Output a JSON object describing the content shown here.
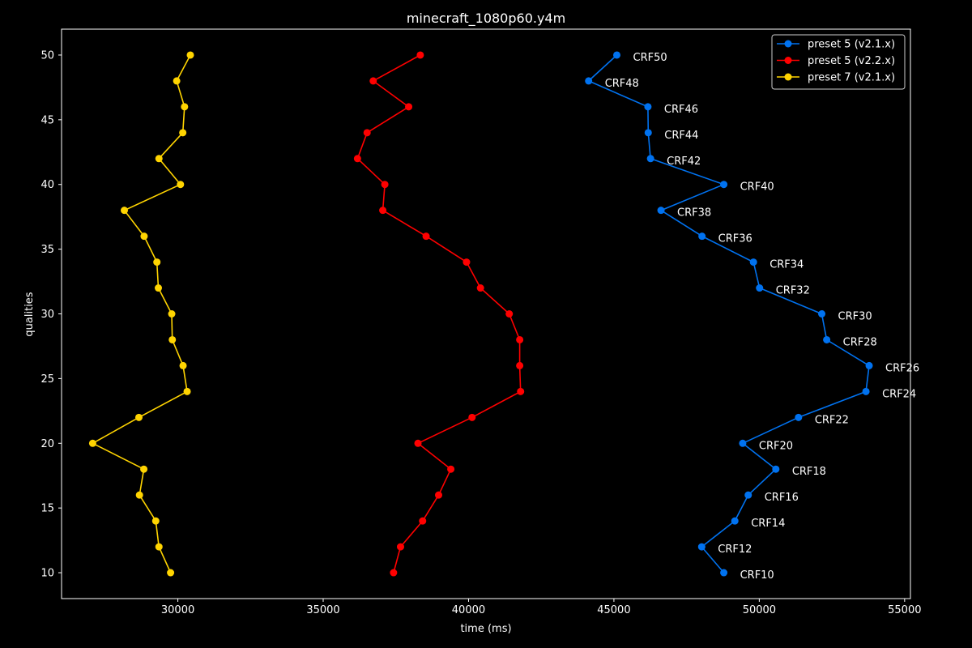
{
  "chart_data": {
    "type": "line",
    "title": "minecraft_1080p60.y4m",
    "xlabel": "time (ms)",
    "ylabel": "qualities",
    "xlim": [
      26000,
      55200
    ],
    "ylim": [
      8,
      52
    ],
    "xticks": [
      30000,
      35000,
      40000,
      45000,
      50000,
      55000
    ],
    "yticks": [
      10,
      15,
      20,
      25,
      30,
      35,
      40,
      45,
      50
    ],
    "grid": false,
    "legend_position": "top-right",
    "y": [
      10,
      12,
      14,
      16,
      18,
      20,
      22,
      24,
      26,
      28,
      30,
      32,
      34,
      36,
      38,
      40,
      42,
      44,
      46,
      48,
      50
    ],
    "point_labels": [
      "CRF10",
      "CRF12",
      "CRF14",
      "CRF16",
      "CRF18",
      "CRF20",
      "CRF22",
      "CRF24",
      "CRF26",
      "CRF28",
      "CRF30",
      "CRF32",
      "CRF34",
      "CRF36",
      "CRF38",
      "CRF40",
      "CRF42",
      "CRF44",
      "CRF46",
      "CRF48",
      "CRF50"
    ],
    "labeled_series": 0,
    "series": [
      {
        "name": "preset 5 (v2.1.x)",
        "color": "#0072f0",
        "x": [
          48780,
          48020,
          49160,
          49620,
          50570,
          49430,
          51350,
          53670,
          53780,
          52320,
          52150,
          50010,
          49800,
          48030,
          46620,
          48780,
          46260,
          46180,
          46170,
          44130,
          45100
        ]
      },
      {
        "name": "preset 5 (v2.2.x)",
        "color": "#ff0000",
        "x": [
          37420,
          37660,
          38420,
          38970,
          39390,
          38260,
          40120,
          41790,
          41760,
          41760,
          41400,
          40410,
          39930,
          38540,
          37050,
          37120,
          36180,
          36510,
          37940,
          36720,
          38340
        ]
      },
      {
        "name": "preset 7 (v2.1.x)",
        "color": "#ffd400",
        "x": [
          29750,
          29350,
          29240,
          28680,
          28830,
          27070,
          28660,
          30320,
          30180,
          29810,
          29790,
          29330,
          29280,
          28840,
          28160,
          30090,
          29350,
          30170,
          30230,
          29960,
          30430
        ]
      }
    ]
  }
}
